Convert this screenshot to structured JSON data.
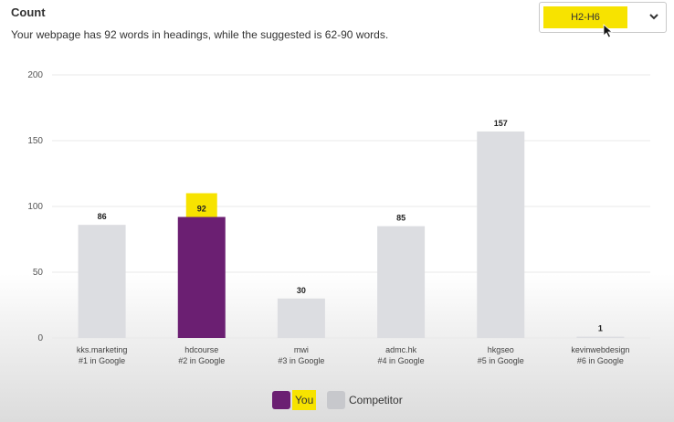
{
  "header": {
    "title": "Count",
    "description": "Your webpage has 92 words in headings, while the suggested is 62-90 words."
  },
  "heading_select": {
    "value": "H2-H6"
  },
  "legend": {
    "you": "You",
    "competitor": "Competitor"
  },
  "colors": {
    "you": "#6b1f72",
    "competitor": "#dcdde1",
    "highlight": "#f7e300",
    "grid": "#e8e8e8"
  },
  "chart_data": {
    "type": "bar",
    "categories": [
      [
        "kks.marketing",
        "#1 in Google"
      ],
      [
        "hdcourse",
        "#2 in Google"
      ],
      [
        "mwi",
        "#3 in Google"
      ],
      [
        "admc.hk",
        "#4 in Google"
      ],
      [
        "hkgseo",
        "#5 in Google"
      ],
      [
        "kevinwebdesign",
        "#6 in Google"
      ]
    ],
    "values": [
      86,
      92,
      30,
      85,
      157,
      1
    ],
    "is_you": [
      false,
      true,
      false,
      false,
      false,
      false
    ],
    "ylim": [
      0,
      200
    ],
    "yticks": [
      0,
      50,
      100,
      150,
      200
    ],
    "grid": true,
    "legend_position": "bottom-center"
  }
}
